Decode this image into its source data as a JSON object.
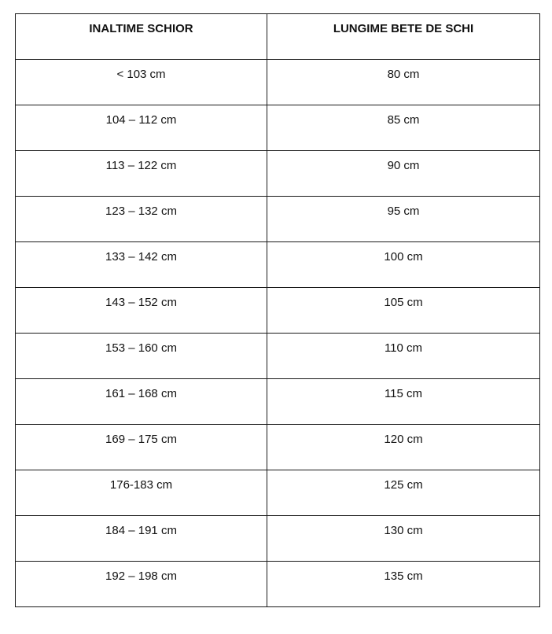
{
  "table": {
    "headers": [
      "INALTIME SCHIOR",
      "LUNGIME BETE DE SCHI"
    ],
    "rows": [
      [
        "< 103 cm",
        "80 cm"
      ],
      [
        "104 – 112 cm",
        "85 cm"
      ],
      [
        "113 – 122 cm",
        "90 cm"
      ],
      [
        "123 – 132 cm",
        "95 cm"
      ],
      [
        "133 – 142 cm",
        "100 cm"
      ],
      [
        "143 – 152 cm",
        "105 cm"
      ],
      [
        "153 – 160 cm",
        "110 cm"
      ],
      [
        "161 – 168 cm",
        "115 cm"
      ],
      [
        "169 – 175 cm",
        "120 cm"
      ],
      [
        "176-183 cm",
        "125 cm"
      ],
      [
        "184 – 191 cm",
        "130 cm"
      ],
      [
        "192 – 198 cm",
        "135 cm"
      ]
    ]
  }
}
